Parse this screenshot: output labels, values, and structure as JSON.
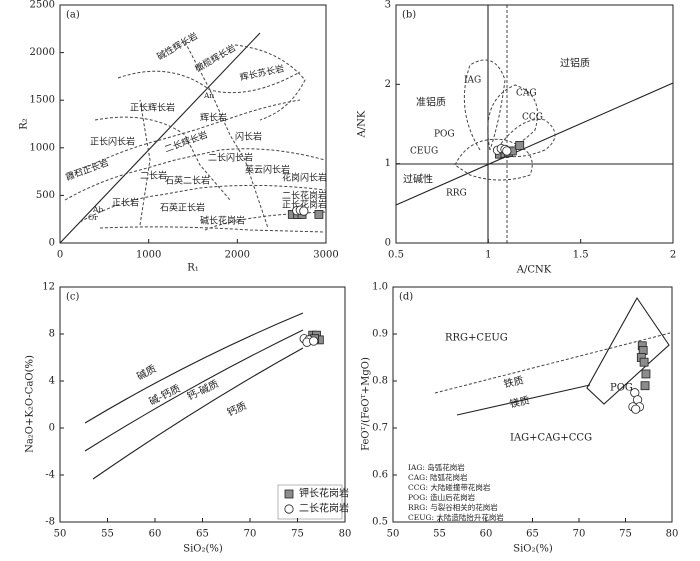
{
  "chart_data": [
    {
      "type": "scatter",
      "title": "(a)",
      "x_label": "R₁",
      "y_label": "R₂",
      "xlim": [
        0,
        3000
      ],
      "xticks": [
        0,
        1000,
        2000,
        3000
      ],
      "ylim": [
        0,
        2500
      ],
      "yticks": [
        0,
        500,
        1000,
        1500,
        2000,
        2500
      ],
      "series": [
        {
          "marker": "square",
          "color": "#8c8c8c",
          "x": [
            2620,
            2680,
            2730,
            2920
          ],
          "values": [
            300,
            300,
            300,
            300
          ]
        },
        {
          "marker": "circle",
          "color": "#ffffff",
          "x": [
            2670,
            2710,
            2750
          ],
          "values": [
            340,
            345,
            335
          ]
        }
      ],
      "annotations": [
        "碱性辉长岩",
        "橄榄辉长岩",
        "辉长苏长岩",
        "正长辉长岩",
        "辉长岩",
        "正长闪长岩",
        "二长辉长岩",
        "闪长岩",
        "二长闪长岩",
        "霞石正长岩",
        "二长岩",
        "英云闪长岩",
        "石英二长岩",
        "花岗闪长岩",
        "正长岩",
        "石英正长岩",
        "二长花岗岩",
        "正长花岗岩",
        "碱长花岗岩",
        "Ab",
        "Or",
        "An"
      ]
    },
    {
      "type": "scatter",
      "title": "(b)",
      "x_label": "A/CNK",
      "y_label": "A/NK",
      "xlim": [
        0.5,
        2
      ],
      "xticks": [
        0.5,
        1,
        1.5,
        2
      ],
      "ylim": [
        0,
        3
      ],
      "yticks": [
        0,
        1,
        2,
        3
      ],
      "series": [
        {
          "marker": "square",
          "color": "#8c8c8c",
          "x": [
            1.06,
            1.09,
            1.11,
            1.13,
            1.17
          ],
          "values": [
            1.12,
            1.13,
            1.14,
            1.16,
            1.23
          ]
        },
        {
          "marker": "circle",
          "color": "#ffffff",
          "x": [
            1.05,
            1.07,
            1.09,
            1.1
          ],
          "values": [
            1.17,
            1.19,
            1.18,
            1.16
          ]
        }
      ],
      "annotations": [
        "过铝质",
        "准铝质",
        "过碱性",
        "IAG",
        "CAG",
        "CCG",
        "POG",
        "CEUG",
        "RRG"
      ]
    },
    {
      "type": "scatter",
      "title": "(c)",
      "x_label": "SiO₂(%)",
      "y_label": "Na₂O+K₂O-CaO(%)",
      "xlim": [
        50,
        80
      ],
      "xticks": [
        50,
        55,
        60,
        65,
        70,
        75,
        80
      ],
      "ylim": [
        -8,
        12
      ],
      "yticks": [
        -8,
        -4,
        0,
        4,
        8,
        12
      ],
      "series": [
        {
          "name": "钾长花岗岩",
          "marker": "square",
          "color": "#8c8c8c",
          "x": [
            76.6,
            77.0,
            77.3,
            76.8
          ],
          "values": [
            7.9,
            7.9,
            7.5,
            7.6
          ]
        },
        {
          "name": "二长花岗岩",
          "marker": "circle",
          "color": "#ffffff",
          "x": [
            75.7,
            76.2,
            76.0,
            76.7
          ],
          "values": [
            7.6,
            7.5,
            7.3,
            7.4
          ]
        }
      ],
      "annotations": [
        "碱质",
        "碱-钙质",
        "钙-碱质",
        "钙质"
      ]
    },
    {
      "type": "scatter",
      "title": "(d)",
      "x_label": "SiO₂(%)",
      "y_label": "FeOᵀ/(FeOᵀ+MgO)",
      "xlim": [
        50,
        80
      ],
      "xticks": [
        50,
        55,
        60,
        65,
        70,
        75,
        80
      ],
      "ylim": [
        0.5,
        1
      ],
      "yticks": [
        0.5,
        0.6,
        0.7,
        0.8,
        0.9,
        {
          "value": 1,
          "label": "1.0"
        }
      ],
      "series": [
        {
          "marker": "square",
          "color": "#8c8c8c",
          "x": [
            76.8,
            76.9,
            76.7,
            77.0,
            77.2,
            77.1
          ],
          "values": [
            0.875,
            0.865,
            0.85,
            0.84,
            0.815,
            0.79
          ]
        },
        {
          "marker": "circle",
          "color": "#ffffff",
          "x": [
            76.0,
            76.3,
            76.5,
            75.8,
            76.1
          ],
          "values": [
            0.775,
            0.76,
            0.745,
            0.745,
            0.74
          ]
        }
      ],
      "annotations": [
        "RRG+CEUG",
        "铁质",
        "镁质",
        "POG",
        "IAG+CAG+CCG",
        "IAG: 岛弧花岗岩",
        "CAG: 陆弧花岗岩",
        "CCG: 大陆碰撞带花岗岩",
        "POG: 造山后花岗岩",
        "RRG: 与裂谷相关的花岗岩",
        "CEUG: 大陆造陆抬升花岗岩"
      ]
    }
  ]
}
